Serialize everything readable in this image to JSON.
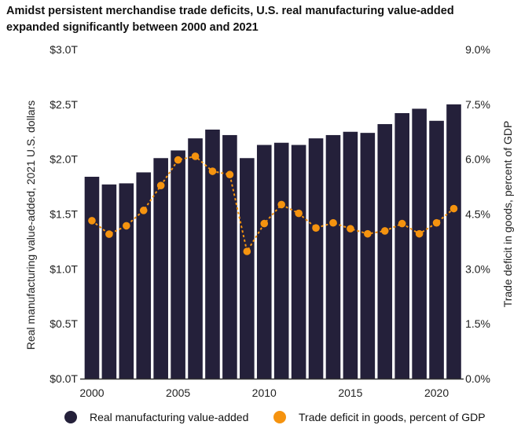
{
  "title": "Amidst persistent merchandise trade deficits, U.S. real manufacturing value-added expanded significantly between 2000 and 2021",
  "colors": {
    "bar": "#24203a",
    "line": "#f5930f",
    "baseline": "#333333"
  },
  "legend": {
    "bars": "Real manufacturing value-added",
    "line": "Trade deficit in goods, percent of GDP"
  },
  "chart_data": {
    "type": "bar+line",
    "x": [
      2000,
      2001,
      2002,
      2003,
      2004,
      2005,
      2006,
      2007,
      2008,
      2009,
      2010,
      2011,
      2012,
      2013,
      2014,
      2015,
      2016,
      2017,
      2018,
      2019,
      2020,
      2021
    ],
    "xticks": [
      2000,
      2005,
      2010,
      2015,
      2020
    ],
    "xtick_labels": [
      "2000",
      "2005",
      "2010",
      "2015",
      "2020"
    ],
    "series": [
      {
        "name": "Real manufacturing value-added",
        "kind": "bar",
        "axis": "left",
        "values": [
          1.84,
          1.77,
          1.78,
          1.88,
          2.01,
          2.08,
          2.19,
          2.27,
          2.22,
          2.01,
          2.13,
          2.15,
          2.13,
          2.19,
          2.22,
          2.25,
          2.24,
          2.32,
          2.42,
          2.46,
          2.35,
          2.5
        ]
      },
      {
        "name": "Trade deficit in goods, percent of GDP",
        "kind": "line",
        "axis": "right",
        "values": [
          4.32,
          3.95,
          4.18,
          4.6,
          5.28,
          5.98,
          6.08,
          5.67,
          5.58,
          3.48,
          4.24,
          4.76,
          4.52,
          4.12,
          4.26,
          4.1,
          3.96,
          4.04,
          4.24,
          3.96,
          4.26,
          4.65
        ]
      }
    ],
    "y_left": {
      "label": "Real manufacturing value-added, 2021 U.S. dollars",
      "range": [
        0,
        3.0
      ],
      "ticks": [
        0,
        0.5,
        1.0,
        1.5,
        2.0,
        2.5,
        3.0
      ],
      "tick_labels": [
        "$0.0T",
        "$0.5T",
        "$1.0T",
        "$1.5T",
        "$2.0T",
        "$2.5T",
        "$3.0T"
      ]
    },
    "y_right": {
      "label": "Trade deficit in goods, percent of GDP",
      "range": [
        0,
        9.0
      ],
      "ticks": [
        0,
        1.5,
        3.0,
        4.5,
        6.0,
        7.5,
        9.0
      ],
      "tick_labels": [
        "0.0%",
        "1.5%",
        "3.0%",
        "4.5%",
        "6.0%",
        "7.5%",
        "9.0%"
      ]
    },
    "grid": false,
    "legend_position": "bottom"
  }
}
